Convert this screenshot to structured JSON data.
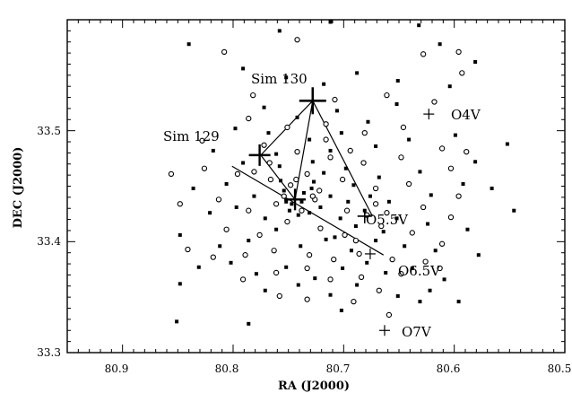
{
  "chart_data": {
    "type": "scatter",
    "xlabel": "RA (J2000)",
    "ylabel": "DEC (J2000)",
    "xlim": [
      80.95,
      80.5
    ],
    "ylim": [
      33.3,
      33.6
    ],
    "x_ticks": [
      80.9,
      80.8,
      80.7,
      80.6,
      80.5
    ],
    "x_tick_labels": [
      "80.9",
      "80.8",
      "80.7",
      "80.6",
      "80.5"
    ],
    "y_ticks": [
      33.3,
      33.4,
      33.5
    ],
    "y_tick_labels": [
      "33.3",
      "33.4",
      "33.5"
    ],
    "grid": false,
    "stars": [
      {
        "name": "Sim 130",
        "ra": 80.728,
        "dec": 33.527
      },
      {
        "name": "Sim 129",
        "ra": 80.776,
        "dec": 33.478
      },
      {
        "name": "O4V",
        "ra": 80.623,
        "dec": 33.515
      },
      {
        "name": "O5.5V",
        "ra": 80.681,
        "dec": 33.423
      },
      {
        "name": "O6.5V",
        "ra": 80.676,
        "dec": 33.389
      },
      {
        "name": "O7V",
        "ra": 80.663,
        "dec": 33.32
      },
      {
        "name": "",
        "ra": 80.744,
        "dec": 33.438
      }
    ],
    "lines": [
      [
        [
          80.728,
          33.527
        ],
        [
          80.674,
          33.423
        ]
      ],
      [
        [
          80.728,
          33.527
        ],
        [
          80.775,
          33.478
        ]
      ],
      [
        [
          80.775,
          33.478
        ],
        [
          80.744,
          33.438
        ]
      ],
      [
        [
          80.801,
          33.468
        ],
        [
          80.664,
          33.388
        ]
      ],
      [
        [
          80.728,
          33.527
        ],
        [
          80.744,
          33.438
        ]
      ]
    ],
    "series": [
      {
        "marker": "filled-dot",
        "points": [
          [
            80.84,
            33.578
          ],
          [
            80.758,
            33.59
          ],
          [
            80.712,
            33.598
          ],
          [
            80.632,
            33.595
          ],
          [
            80.613,
            33.578
          ],
          [
            80.791,
            33.556
          ],
          [
            80.752,
            33.548
          ],
          [
            80.718,
            33.542
          ],
          [
            80.688,
            33.552
          ],
          [
            80.651,
            33.545
          ],
          [
            80.604,
            33.54
          ],
          [
            80.581,
            33.562
          ],
          [
            80.772,
            33.521
          ],
          [
            80.742,
            33.512
          ],
          [
            80.706,
            33.518
          ],
          [
            80.678,
            33.508
          ],
          [
            80.652,
            33.524
          ],
          [
            80.798,
            33.502
          ],
          [
            80.768,
            33.498
          ],
          [
            80.731,
            33.492
          ],
          [
            80.702,
            33.498
          ],
          [
            80.671,
            33.486
          ],
          [
            80.641,
            33.492
          ],
          [
            80.599,
            33.496
          ],
          [
            80.818,
            33.482
          ],
          [
            80.791,
            33.471
          ],
          [
            80.758,
            33.468
          ],
          [
            80.728,
            33.472
          ],
          [
            80.698,
            33.466
          ],
          [
            80.668,
            33.458
          ],
          [
            80.631,
            33.463
          ],
          [
            80.581,
            33.472
          ],
          [
            80.552,
            33.488
          ],
          [
            80.836,
            33.448
          ],
          [
            80.806,
            33.452
          ],
          [
            80.781,
            33.441
          ],
          [
            80.754,
            33.446
          ],
          [
            80.729,
            33.448
          ],
          [
            80.712,
            33.441
          ],
          [
            80.691,
            33.451
          ],
          [
            80.659,
            33.436
          ],
          [
            80.621,
            33.442
          ],
          [
            80.592,
            33.452
          ],
          [
            80.566,
            33.448
          ],
          [
            80.821,
            33.426
          ],
          [
            80.797,
            33.431
          ],
          [
            80.771,
            33.421
          ],
          [
            80.749,
            33.428
          ],
          [
            80.738,
            33.436
          ],
          [
            80.721,
            33.431
          ],
          [
            80.703,
            33.421
          ],
          [
            80.681,
            33.428
          ],
          [
            80.652,
            33.421
          ],
          [
            80.624,
            33.416
          ],
          [
            80.588,
            33.411
          ],
          [
            80.546,
            33.428
          ],
          [
            80.848,
            33.406
          ],
          [
            80.812,
            33.396
          ],
          [
            80.786,
            33.401
          ],
          [
            80.761,
            33.411
          ],
          [
            80.739,
            33.396
          ],
          [
            80.716,
            33.402
          ],
          [
            80.693,
            33.392
          ],
          [
            80.671,
            33.401
          ],
          [
            80.645,
            33.396
          ],
          [
            80.617,
            33.392
          ],
          [
            80.578,
            33.388
          ],
          [
            80.831,
            33.377
          ],
          [
            80.802,
            33.381
          ],
          [
            80.779,
            33.371
          ],
          [
            80.752,
            33.377
          ],
          [
            80.726,
            33.367
          ],
          [
            80.701,
            33.376
          ],
          [
            80.679,
            33.381
          ],
          [
            80.662,
            33.372
          ],
          [
            80.638,
            33.376
          ],
          [
            80.609,
            33.366
          ],
          [
            80.848,
            33.362
          ],
          [
            80.771,
            33.356
          ],
          [
            80.741,
            33.361
          ],
          [
            80.712,
            33.352
          ],
          [
            80.688,
            33.361
          ],
          [
            80.651,
            33.351
          ],
          [
            80.622,
            33.356
          ],
          [
            80.596,
            33.346
          ],
          [
            80.851,
            33.328
          ],
          [
            80.786,
            33.326
          ],
          [
            80.702,
            33.338
          ],
          [
            80.631,
            33.346
          ],
          [
            80.757,
            33.455
          ],
          [
            80.747,
            33.434
          ],
          [
            80.736,
            33.444
          ],
          [
            80.741,
            33.424
          ],
          [
            80.752,
            33.436
          ],
          [
            80.731,
            33.426
          ],
          [
            80.727,
            33.454
          ],
          [
            80.718,
            33.462
          ],
          [
            80.761,
            33.479
          ],
          [
            80.708,
            33.404
          ],
          [
            80.689,
            33.414
          ],
          [
            80.676,
            33.441
          ],
          [
            80.664,
            33.409
          ],
          [
            80.696,
            33.436
          ],
          [
            80.712,
            33.482
          ]
        ]
      },
      {
        "marker": "open-circle",
        "points": [
          [
            80.808,
            33.571
          ],
          [
            80.742,
            33.582
          ],
          [
            80.628,
            33.569
          ],
          [
            80.596,
            33.571
          ],
          [
            80.593,
            33.552
          ],
          [
            80.782,
            33.532
          ],
          [
            80.708,
            33.528
          ],
          [
            80.661,
            33.532
          ],
          [
            80.618,
            33.526
          ],
          [
            80.786,
            33.511
          ],
          [
            80.751,
            33.503
          ],
          [
            80.716,
            33.506
          ],
          [
            80.681,
            33.498
          ],
          [
            80.646,
            33.503
          ],
          [
            80.611,
            33.484
          ],
          [
            80.589,
            33.481
          ],
          [
            80.828,
            33.491
          ],
          [
            80.772,
            33.487
          ],
          [
            80.742,
            33.481
          ],
          [
            80.712,
            33.476
          ],
          [
            80.682,
            33.471
          ],
          [
            80.648,
            33.476
          ],
          [
            80.603,
            33.466
          ],
          [
            80.856,
            33.461
          ],
          [
            80.826,
            33.466
          ],
          [
            80.796,
            33.461
          ],
          [
            80.766,
            33.456
          ],
          [
            80.733,
            33.461
          ],
          [
            80.701,
            33.456
          ],
          [
            80.671,
            33.448
          ],
          [
            80.641,
            33.452
          ],
          [
            80.596,
            33.441
          ],
          [
            80.848,
            33.434
          ],
          [
            80.813,
            33.438
          ],
          [
            80.786,
            33.428
          ],
          [
            80.761,
            33.434
          ],
          [
            80.726,
            33.438
          ],
          [
            80.697,
            33.428
          ],
          [
            80.661,
            33.426
          ],
          [
            80.628,
            33.431
          ],
          [
            80.603,
            33.422
          ],
          [
            80.841,
            33.393
          ],
          [
            80.806,
            33.411
          ],
          [
            80.776,
            33.406
          ],
          [
            80.751,
            33.418
          ],
          [
            80.721,
            33.412
          ],
          [
            80.699,
            33.406
          ],
          [
            80.666,
            33.414
          ],
          [
            80.638,
            33.408
          ],
          [
            80.611,
            33.398
          ],
          [
            80.818,
            33.386
          ],
          [
            80.789,
            33.388
          ],
          [
            80.763,
            33.392
          ],
          [
            80.731,
            33.388
          ],
          [
            80.709,
            33.384
          ],
          [
            80.686,
            33.389
          ],
          [
            80.656,
            33.384
          ],
          [
            80.626,
            33.382
          ],
          [
            80.791,
            33.366
          ],
          [
            80.761,
            33.372
          ],
          [
            80.733,
            33.376
          ],
          [
            80.712,
            33.366
          ],
          [
            80.684,
            33.368
          ],
          [
            80.648,
            33.371
          ],
          [
            80.613,
            33.376
          ],
          [
            80.758,
            33.351
          ],
          [
            80.733,
            33.348
          ],
          [
            80.691,
            33.346
          ],
          [
            80.668,
            33.356
          ],
          [
            80.659,
            33.334
          ],
          [
            80.748,
            33.451
          ],
          [
            80.738,
            33.428
          ],
          [
            80.754,
            33.441
          ],
          [
            80.728,
            33.441
          ],
          [
            80.743,
            33.456
          ],
          [
            80.722,
            33.446
          ],
          [
            80.767,
            33.471
          ],
          [
            80.781,
            33.463
          ],
          [
            80.716,
            33.492
          ],
          [
            80.694,
            33.482
          ],
          [
            80.679,
            33.424
          ],
          [
            80.689,
            33.401
          ],
          [
            80.671,
            33.434
          ]
        ]
      }
    ],
    "annotations": [
      "Sim 130",
      "Sim 129",
      "O4V",
      "O5.5V",
      "O6.5V",
      "O7V"
    ]
  }
}
